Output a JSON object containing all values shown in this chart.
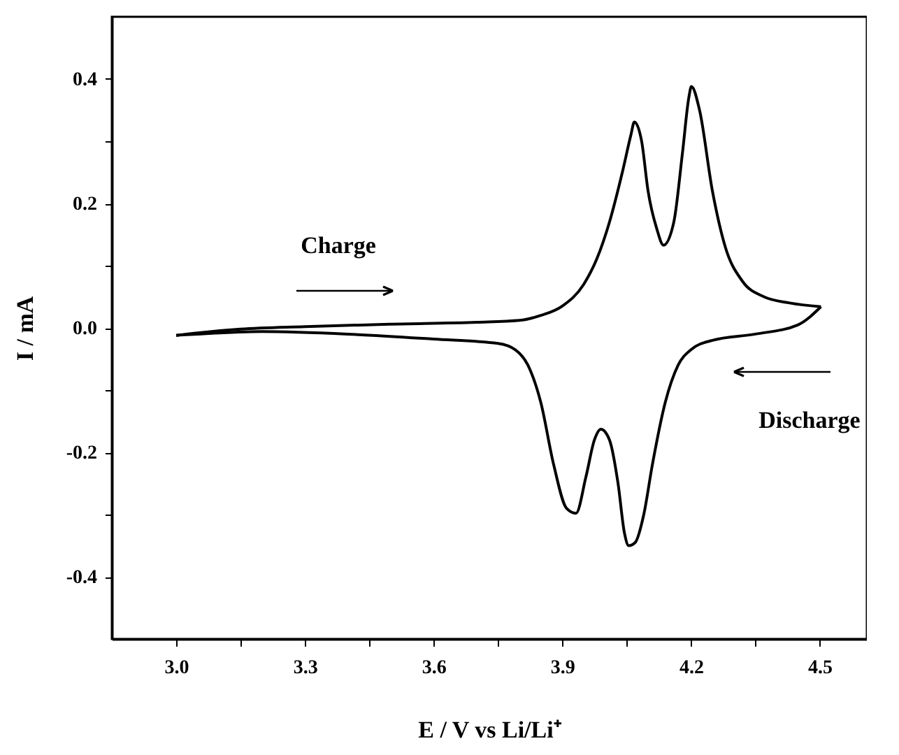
{
  "chart_data": {
    "type": "line",
    "xlabel": "E / V vs Li/Li⁺",
    "ylabel": "I / mA",
    "xlim": [
      2.85,
      4.61
    ],
    "ylim": [
      -0.5,
      0.5
    ],
    "xticks": [
      {
        "value": 3.0,
        "label": "3.0"
      },
      {
        "value": 3.15,
        "label": null
      },
      3.3,
      {
        "value": 3.45,
        "label": null
      },
      3.6,
      {
        "value": 3.75,
        "label": null
      },
      3.9,
      {
        "value": 4.05,
        "label": null
      },
      4.2,
      {
        "value": 4.35,
        "label": null
      },
      4.5
    ],
    "yticks": [
      -0.4,
      {
        "value": -0.3,
        "label": null
      },
      -0.2,
      {
        "value": -0.1,
        "label": null
      },
      {
        "value": 0,
        "label": "0.0"
      },
      {
        "value": 0.1,
        "label": null
      },
      0.2,
      {
        "value": 0.3,
        "label": null
      },
      0.4
    ],
    "grid": false,
    "legend": false,
    "marker": "none",
    "line_style": "solid",
    "annotations": [
      "Charge",
      "Discharge"
    ],
    "series": [
      {
        "color": "#000000",
        "x": [
          3.0,
          3.05,
          3.15,
          3.3,
          3.5,
          3.7,
          3.8,
          3.85,
          3.9,
          3.95,
          3.98,
          4.01,
          4.04,
          4.06,
          4.068,
          4.085,
          4.1,
          4.12,
          4.136,
          4.16,
          4.18,
          4.195,
          4.201,
          4.22,
          4.25,
          4.28,
          4.32,
          4.37,
          4.43,
          4.503
        ],
        "values": [
          -0.012,
          -0.008,
          -0.002,
          0.002,
          0.006,
          0.009,
          0.012,
          0.02,
          0.035,
          0.07,
          0.11,
          0.17,
          0.25,
          0.31,
          0.331,
          0.3,
          0.22,
          0.16,
          0.133,
          0.17,
          0.28,
          0.37,
          0.388,
          0.35,
          0.22,
          0.13,
          0.075,
          0.05,
          0.04,
          0.034
        ]
      },
      {
        "color": "#000000",
        "x": [
          3.0,
          3.05,
          3.2,
          3.4,
          3.6,
          3.75,
          3.79,
          3.82,
          3.85,
          3.88,
          3.91,
          3.932,
          3.955,
          3.975,
          3.99,
          4.01,
          4.03,
          4.045,
          4.055,
          4.07,
          4.09,
          4.11,
          4.14,
          4.17,
          4.2,
          4.25,
          4.35,
          4.45,
          4.503
        ],
        "values": [
          -0.012,
          -0.01,
          -0.006,
          -0.01,
          -0.018,
          -0.025,
          -0.035,
          -0.06,
          -0.12,
          -0.22,
          -0.29,
          -0.298,
          -0.24,
          -0.18,
          -0.163,
          -0.18,
          -0.25,
          -0.33,
          -0.35,
          -0.345,
          -0.3,
          -0.22,
          -0.12,
          -0.06,
          -0.035,
          -0.02,
          -0.01,
          0.005,
          0.034
        ]
      }
    ]
  }
}
